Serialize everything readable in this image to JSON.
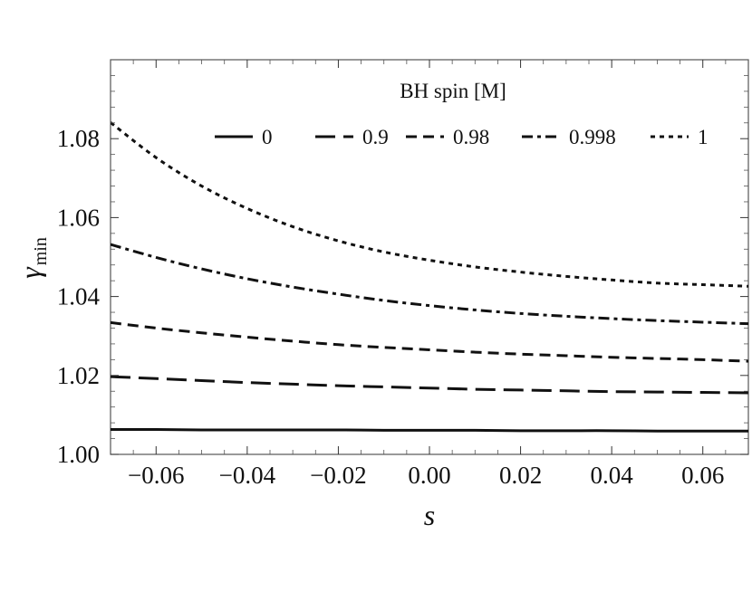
{
  "chart_data": {
    "type": "line",
    "xlabel": "s",
    "ylabel_main": "γ",
    "ylabel_sub": "min",
    "xlim": [
      -0.07,
      0.07
    ],
    "ylim": [
      1.0,
      1.1
    ],
    "xticks": [
      -0.06,
      -0.04,
      -0.02,
      0.0,
      0.02,
      0.04,
      0.06
    ],
    "xtick_labels": [
      "−0.06",
      "−0.04",
      "−0.02",
      "0.00",
      "0.02",
      "0.04",
      "0.06"
    ],
    "yticks": [
      1.0,
      1.02,
      1.04,
      1.06,
      1.08
    ],
    "ytick_labels": [
      "1.00",
      "1.02",
      "1.04",
      "1.06",
      "1.08"
    ],
    "grid": false,
    "legend_title": "BH spin  [M]",
    "legend_placement": "top-right",
    "x": [
      -0.07,
      -0.06,
      -0.05,
      -0.04,
      -0.03,
      -0.02,
      -0.01,
      0.0,
      0.01,
      0.02,
      0.03,
      0.04,
      0.05,
      0.06,
      0.07
    ],
    "series": [
      {
        "name": "0",
        "style": "solid",
        "values": [
          1.0063,
          1.0063,
          1.0062,
          1.0062,
          1.0062,
          1.0062,
          1.0061,
          1.0061,
          1.0061,
          1.006,
          1.006,
          1.006,
          1.0059,
          1.0059,
          1.0059
        ]
      },
      {
        "name": "0.9",
        "style": "long-dash",
        "values": [
          1.0197,
          1.0192,
          1.0187,
          1.0182,
          1.0178,
          1.0174,
          1.0171,
          1.0168,
          1.0165,
          1.0163,
          1.0161,
          1.0159,
          1.0158,
          1.0157,
          1.0156
        ]
      },
      {
        "name": "0.98",
        "style": "dash",
        "values": [
          1.0334,
          1.032,
          1.0308,
          1.0297,
          1.0287,
          1.0278,
          1.0271,
          1.0265,
          1.0259,
          1.0254,
          1.025,
          1.0246,
          1.0243,
          1.024,
          1.0236
        ]
      },
      {
        "name": "0.998",
        "style": "dash-dot",
        "values": [
          1.0532,
          1.0499,
          1.047,
          1.0445,
          1.0424,
          1.0406,
          1.039,
          1.0377,
          1.0366,
          1.0357,
          1.035,
          1.0344,
          1.0339,
          1.0335,
          1.0331
        ]
      },
      {
        "name": "1",
        "style": "dotted",
        "values": [
          1.0841,
          1.0752,
          1.068,
          1.0623,
          1.0577,
          1.0541,
          1.0513,
          1.0492,
          1.0475,
          1.0462,
          1.0451,
          1.0442,
          1.0434,
          1.047,
          1.0465
        ]
      }
    ]
  }
}
